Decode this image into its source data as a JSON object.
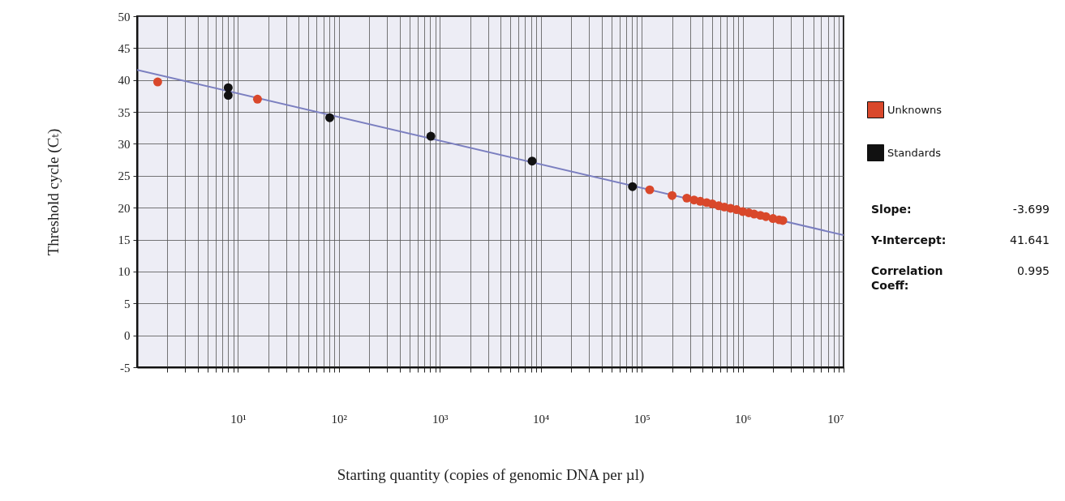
{
  "chart_data": {
    "type": "scatter",
    "xlabel": "Starting quantity (copies of genomic DNA per µl)",
    "ylabel": "Threshold cycle (Cₜ)",
    "log": "x",
    "grid": true,
    "legend": "right",
    "marker": "circle",
    "xlim": [
      1,
      10000000
    ],
    "ylim": [
      -5,
      50
    ],
    "xticks": [
      {
        "value": 2,
        "label": null
      },
      {
        "value": 3,
        "label": null
      },
      {
        "value": 4,
        "label": null
      },
      {
        "value": 5,
        "label": null
      },
      {
        "value": 6,
        "label": null
      },
      {
        "value": 7,
        "label": null
      },
      {
        "value": 8,
        "label": null
      },
      {
        "value": 9,
        "label": null
      },
      {
        "value": 10,
        "label": "10¹"
      },
      {
        "value": 20,
        "label": null
      },
      {
        "value": 30,
        "label": null
      },
      {
        "value": 40,
        "label": null
      },
      {
        "value": 50,
        "label": null
      },
      {
        "value": 60,
        "label": null
      },
      {
        "value": 70,
        "label": null
      },
      {
        "value": 80,
        "label": null
      },
      {
        "value": 90,
        "label": null
      },
      {
        "value": 100,
        "label": "10²"
      },
      {
        "value": 200,
        "label": null
      },
      {
        "value": 300,
        "label": null
      },
      {
        "value": 400,
        "label": null
      },
      {
        "value": 500,
        "label": null
      },
      {
        "value": 600,
        "label": null
      },
      {
        "value": 700,
        "label": null
      },
      {
        "value": 800,
        "label": null
      },
      {
        "value": 900,
        "label": null
      },
      {
        "value": 1000,
        "label": "10³"
      },
      {
        "value": 2000,
        "label": null
      },
      {
        "value": 3000,
        "label": null
      },
      {
        "value": 4000,
        "label": null
      },
      {
        "value": 5000,
        "label": null
      },
      {
        "value": 6000,
        "label": null
      },
      {
        "value": 7000,
        "label": null
      },
      {
        "value": 8000,
        "label": null
      },
      {
        "value": 9000,
        "label": null
      },
      {
        "value": 10000,
        "label": "10⁴"
      },
      {
        "value": 20000,
        "label": null
      },
      {
        "value": 30000,
        "label": null
      },
      {
        "value": 40000,
        "label": null
      },
      {
        "value": 50000,
        "label": null
      },
      {
        "value": 60000,
        "label": null
      },
      {
        "value": 70000,
        "label": null
      },
      {
        "value": 80000,
        "label": null
      },
      {
        "value": 90000,
        "label": null
      },
      {
        "value": 100000,
        "label": "10⁵"
      },
      {
        "value": 200000,
        "label": null
      },
      {
        "value": 300000,
        "label": null
      },
      {
        "value": 400000,
        "label": null
      },
      {
        "value": 500000,
        "label": null
      },
      {
        "value": 600000,
        "label": null
      },
      {
        "value": 700000,
        "label": null
      },
      {
        "value": 800000,
        "label": null
      },
      {
        "value": 900000,
        "label": null
      },
      {
        "value": 1000000,
        "label": "10⁶"
      },
      {
        "value": 2000000,
        "label": null
      },
      {
        "value": 3000000,
        "label": null
      },
      {
        "value": 4000000,
        "label": null
      },
      {
        "value": 5000000,
        "label": null
      },
      {
        "value": 6000000,
        "label": null
      },
      {
        "value": 7000000,
        "label": null
      },
      {
        "value": 8000000,
        "label": null
      },
      {
        "value": 9000000,
        "label": null
      },
      {
        "value": 10000000,
        "label": "10⁷"
      }
    ],
    "yticks": [
      -5,
      0,
      5,
      10,
      15,
      20,
      25,
      30,
      35,
      40,
      45,
      50
    ],
    "series": [
      {
        "type": "line",
        "marker": "none",
        "color": "#7b7fc0",
        "x": [
          1,
          10000000
        ],
        "values": [
          41.6,
          15.7
        ]
      },
      {
        "name": "Unknowns",
        "color": "#d9482b",
        "x": [
          1.6,
          15.6,
          120000,
          200000,
          280000,
          330000,
          380000,
          440000,
          500000,
          580000,
          660000,
          760000,
          870000,
          1000000,
          1150000,
          1300000,
          1500000,
          1700000,
          2000000,
          2300000,
          2500000
        ],
        "values": [
          39.7,
          37.0,
          22.8,
          21.9,
          21.5,
          21.2,
          21.0,
          20.8,
          20.6,
          20.3,
          20.1,
          19.9,
          19.7,
          19.4,
          19.2,
          19.0,
          18.8,
          18.6,
          18.3,
          18.1,
          18.0
        ]
      },
      {
        "name": "Standards",
        "color": "#111111",
        "x": [
          8,
          8,
          81,
          814,
          8200,
          81000
        ],
        "values": [
          38.8,
          37.6,
          34.1,
          31.2,
          27.3,
          23.3
        ]
      }
    ],
    "annotations": [
      "Slope:",
      "-3.699",
      "Y-Intercept:",
      "41.641",
      "Correlation Coeff:",
      "0.995"
    ]
  }
}
